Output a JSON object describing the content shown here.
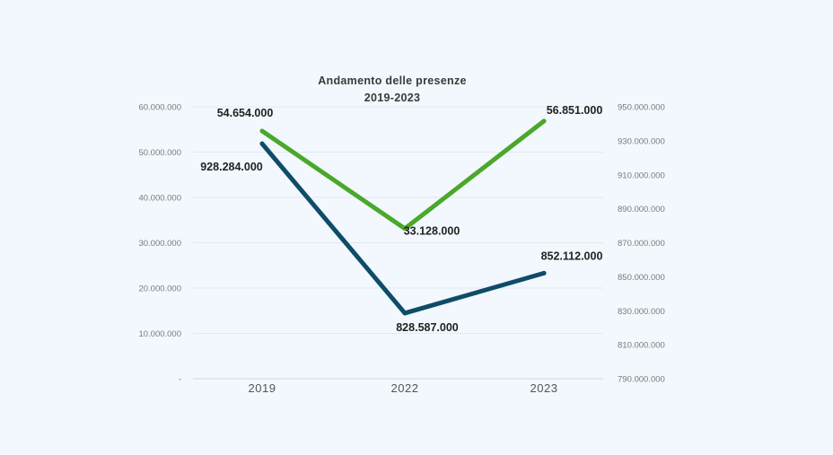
{
  "chart_data": {
    "type": "line",
    "title": "Andamento delle presenze",
    "subtitle": "2019-2023",
    "categories": [
      "2019",
      "2022",
      "2023"
    ],
    "y_left": {
      "ylim": [
        0,
        60000000
      ],
      "ticks": [
        0,
        10000000,
        20000000,
        30000000,
        40000000,
        50000000,
        60000000
      ],
      "tick_labels": [
        "-",
        "10.000.000",
        "20.000.000",
        "30.000.000",
        "40.000.000",
        "50.000.000",
        "60.000.000"
      ]
    },
    "y_right": {
      "ylim": [
        790000000,
        950000000
      ],
      "ticks": [
        790000000,
        810000000,
        830000000,
        850000000,
        870000000,
        890000000,
        910000000,
        930000000,
        950000000
      ],
      "tick_labels": [
        "790.000.000",
        "810.000.000",
        "830.000.000",
        "850.000.000",
        "870.000.000",
        "890.000.000",
        "910.000.000",
        "930.000.000",
        "950.000.000"
      ]
    },
    "series": [
      {
        "axis": "left",
        "color": "#4aa82a",
        "values": [
          54654000,
          33128000,
          56851000
        ],
        "labels": [
          "54.654.000",
          "33.128.000",
          "56.851.000"
        ]
      },
      {
        "axis": "right",
        "color": "#0f4c68",
        "values": [
          928284000,
          828587000,
          852112000
        ],
        "labels": [
          "928.284.000",
          "828.587.000",
          "852.112.000"
        ]
      }
    ],
    "grid": true,
    "legend": "none"
  }
}
